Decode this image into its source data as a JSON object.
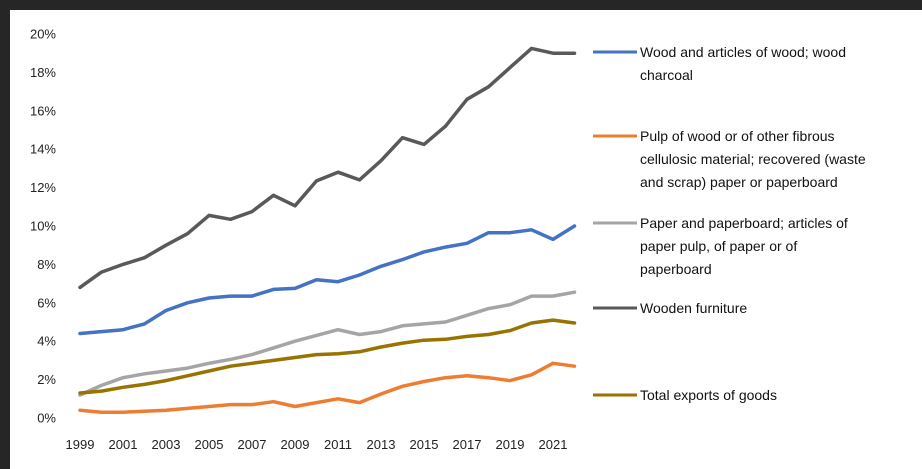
{
  "chart_data": {
    "type": "line",
    "x": [
      1999,
      2000,
      2001,
      2002,
      2003,
      2004,
      2005,
      2006,
      2007,
      2008,
      2009,
      2010,
      2011,
      2012,
      2013,
      2014,
      2015,
      2016,
      2017,
      2018,
      2019,
      2020,
      2021,
      2022
    ],
    "x_tick_labels": [
      "1999",
      "2001",
      "2003",
      "2005",
      "2007",
      "2009",
      "2011",
      "2013",
      "2015",
      "2017",
      "2019",
      "2021"
    ],
    "y_tick_labels": [
      "0%",
      "2%",
      "4%",
      "6%",
      "8%",
      "10%",
      "12%",
      "14%",
      "16%",
      "18%",
      "20%"
    ],
    "ylim": [
      0,
      20
    ],
    "y_unit": "%",
    "grid": false,
    "legend_position": "right",
    "series": [
      {
        "name": "Wood and articles of wood; wood charcoal",
        "legend_lines": [
          "Wood and articles of wood; wood",
          "charcoal"
        ],
        "color": "#4472C4",
        "values": [
          4.4,
          4.5,
          4.6,
          4.9,
          5.6,
          6.0,
          6.25,
          6.35,
          6.35,
          6.7,
          6.75,
          7.2,
          7.1,
          7.45,
          7.9,
          8.25,
          8.65,
          8.9,
          9.1,
          9.65,
          9.65,
          9.8,
          9.3,
          10.0
        ]
      },
      {
        "name": "Pulp of wood or of other fibrous cellulosic material; recovered (waste and scrap) paper or paperboard",
        "legend_lines": [
          "Pulp of wood or of other fibrous",
          "cellulosic material; recovered (waste",
          "and scrap) paper or paperboard"
        ],
        "color": "#ED7D31",
        "values": [
          0.4,
          0.3,
          0.3,
          0.35,
          0.4,
          0.5,
          0.6,
          0.7,
          0.7,
          0.85,
          0.6,
          0.8,
          1.0,
          0.8,
          1.25,
          1.65,
          1.9,
          2.1,
          2.2,
          2.1,
          1.95,
          2.25,
          2.85,
          2.7
        ]
      },
      {
        "name": "Paper and paperboard; articles of paper pulp, of paper or of paperboard",
        "legend_lines": [
          "Paper and paperboard; articles of",
          "paper pulp, of paper or of",
          "paperboard"
        ],
        "color": "#A5A5A5",
        "values": [
          1.2,
          1.7,
          2.1,
          2.3,
          2.45,
          2.6,
          2.85,
          3.05,
          3.3,
          3.65,
          4.0,
          4.3,
          4.6,
          4.35,
          4.5,
          4.8,
          4.9,
          5.0,
          5.35,
          5.7,
          5.9,
          6.35,
          6.35,
          6.55
        ]
      },
      {
        "name": "Wooden furniture",
        "legend_lines": [
          "Wooden furniture"
        ],
        "color": "#595959",
        "values": [
          6.8,
          7.6,
          8.0,
          8.35,
          9.0,
          9.6,
          10.55,
          10.35,
          10.75,
          11.6,
          11.05,
          12.35,
          12.8,
          12.4,
          13.4,
          14.6,
          14.25,
          15.2,
          16.6,
          17.25,
          18.25,
          19.25,
          19.0,
          19.0
        ]
      },
      {
        "name": "Total exports of goods",
        "legend_lines": [
          "Total exports of goods"
        ],
        "color": "#997300",
        "values": [
          1.3,
          1.4,
          1.6,
          1.75,
          1.95,
          2.2,
          2.45,
          2.7,
          2.85,
          3.0,
          3.15,
          3.3,
          3.35,
          3.45,
          3.7,
          3.9,
          4.05,
          4.1,
          4.25,
          4.35,
          4.55,
          4.95,
          5.1,
          4.95
        ]
      }
    ]
  }
}
